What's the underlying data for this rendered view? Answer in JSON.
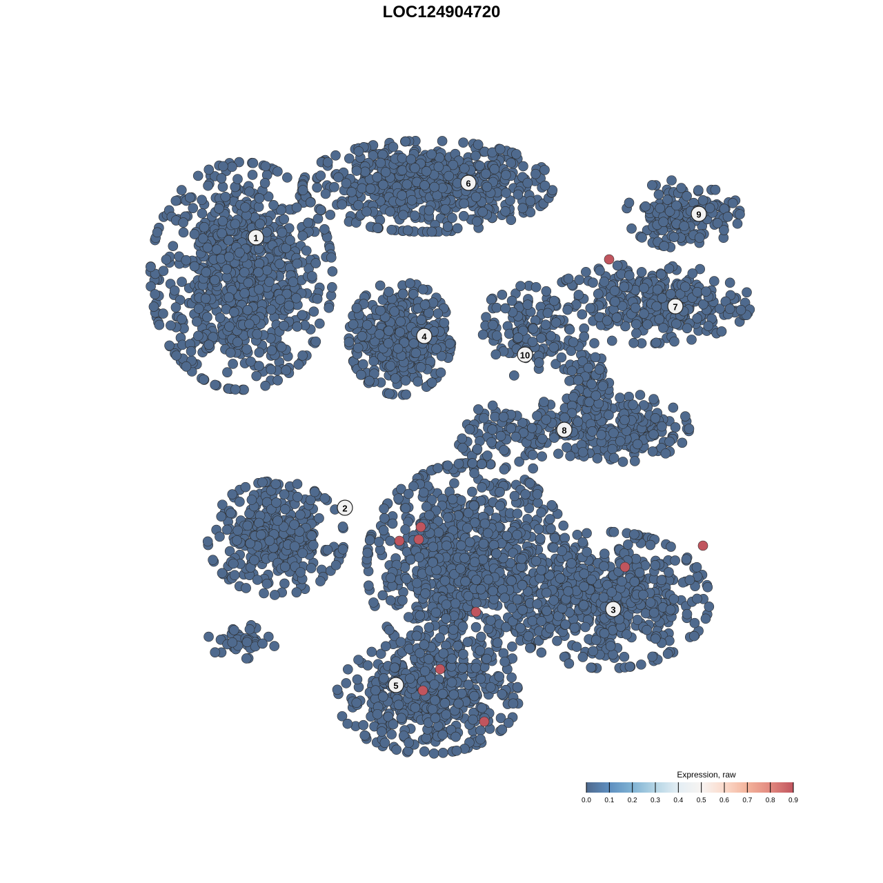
{
  "chart_data": {
    "type": "scatter",
    "title": "LOC124904720",
    "xlabel": "",
    "ylabel": "",
    "grid": false,
    "axes_visible": false,
    "point_color_low": "#4F6A8E",
    "point_color_high": "#C0555E",
    "point_outline": "#2B2B2B",
    "clusters": [
      {
        "label": "1",
        "label_pos": [
          -26.9,
          29.6
        ],
        "blobs": [
          {
            "c": [
              -29,
              24
            ],
            "s": [
              8,
              10
            ],
            "n": 800
          }
        ]
      },
      {
        "label": "6",
        "label_pos": [
          3.9,
          37.5
        ],
        "blobs": [
          {
            "c": [
              -2,
              37
            ],
            "s": [
              11,
              4
            ],
            "n": 600
          }
        ]
      },
      {
        "label": "4",
        "label_pos": [
          -2.5,
          15.3
        ],
        "blobs": [
          {
            "c": [
              -6,
              15
            ],
            "s": [
              4.5,
              5
            ],
            "n": 420
          }
        ]
      },
      {
        "label": "9",
        "label_pos": [
          37.3,
          33.0
        ],
        "blobs": [
          {
            "c": [
              35,
              33
            ],
            "s": [
              5,
              3
            ],
            "n": 160
          }
        ]
      },
      {
        "label": "7",
        "label_pos": [
          33.9,
          19.6
        ],
        "blobs": [
          {
            "c": [
              30,
              20
            ],
            "s": [
              9,
              3.5
            ],
            "n": 300
          }
        ]
      },
      {
        "label": "10",
        "label_pos": [
          12.1,
          12.6
        ],
        "blobs": [
          {
            "c": [
              12,
              16
            ],
            "s": [
              4,
              4
            ],
            "n": 120
          }
        ]
      },
      {
        "label": "8",
        "label_pos": [
          17.8,
          1.7
        ],
        "blobs": [
          {
            "c": [
              26,
              2
            ],
            "s": [
              6,
              3
            ],
            "n": 200
          },
          {
            "c": [
              21,
              9
            ],
            "s": [
              2,
              4
            ],
            "n": 90
          },
          {
            "c": [
              12,
              1
            ],
            "s": [
              6,
              3
            ],
            "n": 120
          }
        ]
      },
      {
        "label": "2",
        "label_pos": [
          -14.0,
          -9.6
        ],
        "blobs": [
          {
            "c": [
              -24,
              -14
            ],
            "s": [
              6,
              5
            ],
            "n": 320
          },
          {
            "c": [
              -29,
              -29
            ],
            "s": [
              3,
              1.5
            ],
            "n": 40
          }
        ]
      },
      {
        "label": "3",
        "label_pos": [
          24.9,
          -24.3
        ],
        "blobs": [
          {
            "c": [
              24,
              -23
            ],
            "s": [
              9,
              6
            ],
            "n": 520
          }
        ]
      },
      {
        "label": "5",
        "label_pos": [
          -6.6,
          -35.3
        ],
        "blobs": [
          {
            "c": [
              -2,
              -37
            ],
            "s": [
              8,
              5
            ],
            "n": 450
          },
          {
            "c": [
              4,
              -18
            ],
            "s": [
              9,
              9
            ],
            "n": 900
          }
        ]
      }
    ],
    "expressing_points": [
      {
        "x": 24.3,
        "y": 26.4,
        "value": 0.9
      },
      {
        "x": -3.0,
        "y": -12.4,
        "value": 0.9
      },
      {
        "x": -3.3,
        "y": -14.2,
        "value": 0.9
      },
      {
        "x": -6.1,
        "y": -14.4,
        "value": 0.9
      },
      {
        "x": 26.6,
        "y": -18.2,
        "value": 0.9
      },
      {
        "x": 37.9,
        "y": -15.1,
        "value": 0.9
      },
      {
        "x": 5.0,
        "y": -24.7,
        "value": 0.9
      },
      {
        "x": -0.2,
        "y": -33.0,
        "value": 0.9
      },
      {
        "x": -2.7,
        "y": -36.1,
        "value": 0.9
      },
      {
        "x": 6.2,
        "y": -40.6,
        "value": 0.9
      }
    ],
    "background_value": 0.0,
    "legend": {
      "title": "Expression, raw",
      "placement": "bottom-right",
      "ticks": [
        "0.0",
        "0.1",
        "0.2",
        "0.3",
        "0.4",
        "0.5",
        "0.6",
        "0.7",
        "0.8",
        "0.9"
      ],
      "range": [
        0,
        0.9
      ],
      "colors": [
        "#4F6A8E",
        "#5E8FC0",
        "#7FB2D3",
        "#B5D5E5",
        "#E4EEF4",
        "#F7F4F2",
        "#FBDACB",
        "#F3B39B",
        "#E2887F",
        "#C0555E"
      ]
    }
  }
}
